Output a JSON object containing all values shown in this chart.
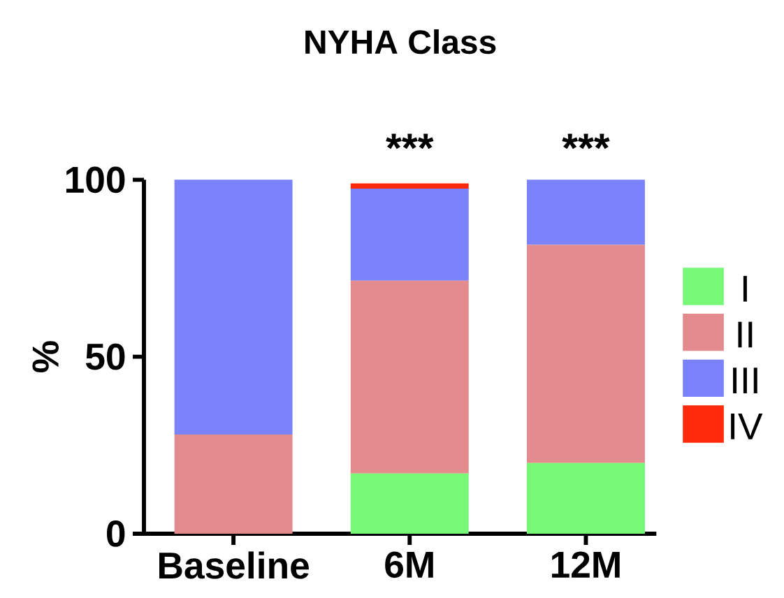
{
  "chart_data": {
    "type": "bar",
    "title": "NYHA Class",
    "ylabel": "%",
    "categories": [
      "Baseline",
      "6M",
      "12M"
    ],
    "stacked": true,
    "legend": "right",
    "ylim": [
      0,
      100
    ],
    "yticks": [
      0,
      50,
      100
    ],
    "series": [
      {
        "name": "I",
        "color": "#77f977",
        "values": [
          0,
          17,
          20
        ]
      },
      {
        "name": "II",
        "color": "#e48b8e",
        "values": [
          28,
          54.5,
          61.6
        ]
      },
      {
        "name": "III",
        "color": "#7a82fc",
        "values": [
          72,
          26,
          18.4
        ]
      },
      {
        "name": "IV",
        "color": "#ff2a0a",
        "values": [
          0,
          1.5,
          0
        ]
      }
    ],
    "annotations": [
      "***",
      "***"
    ]
  }
}
